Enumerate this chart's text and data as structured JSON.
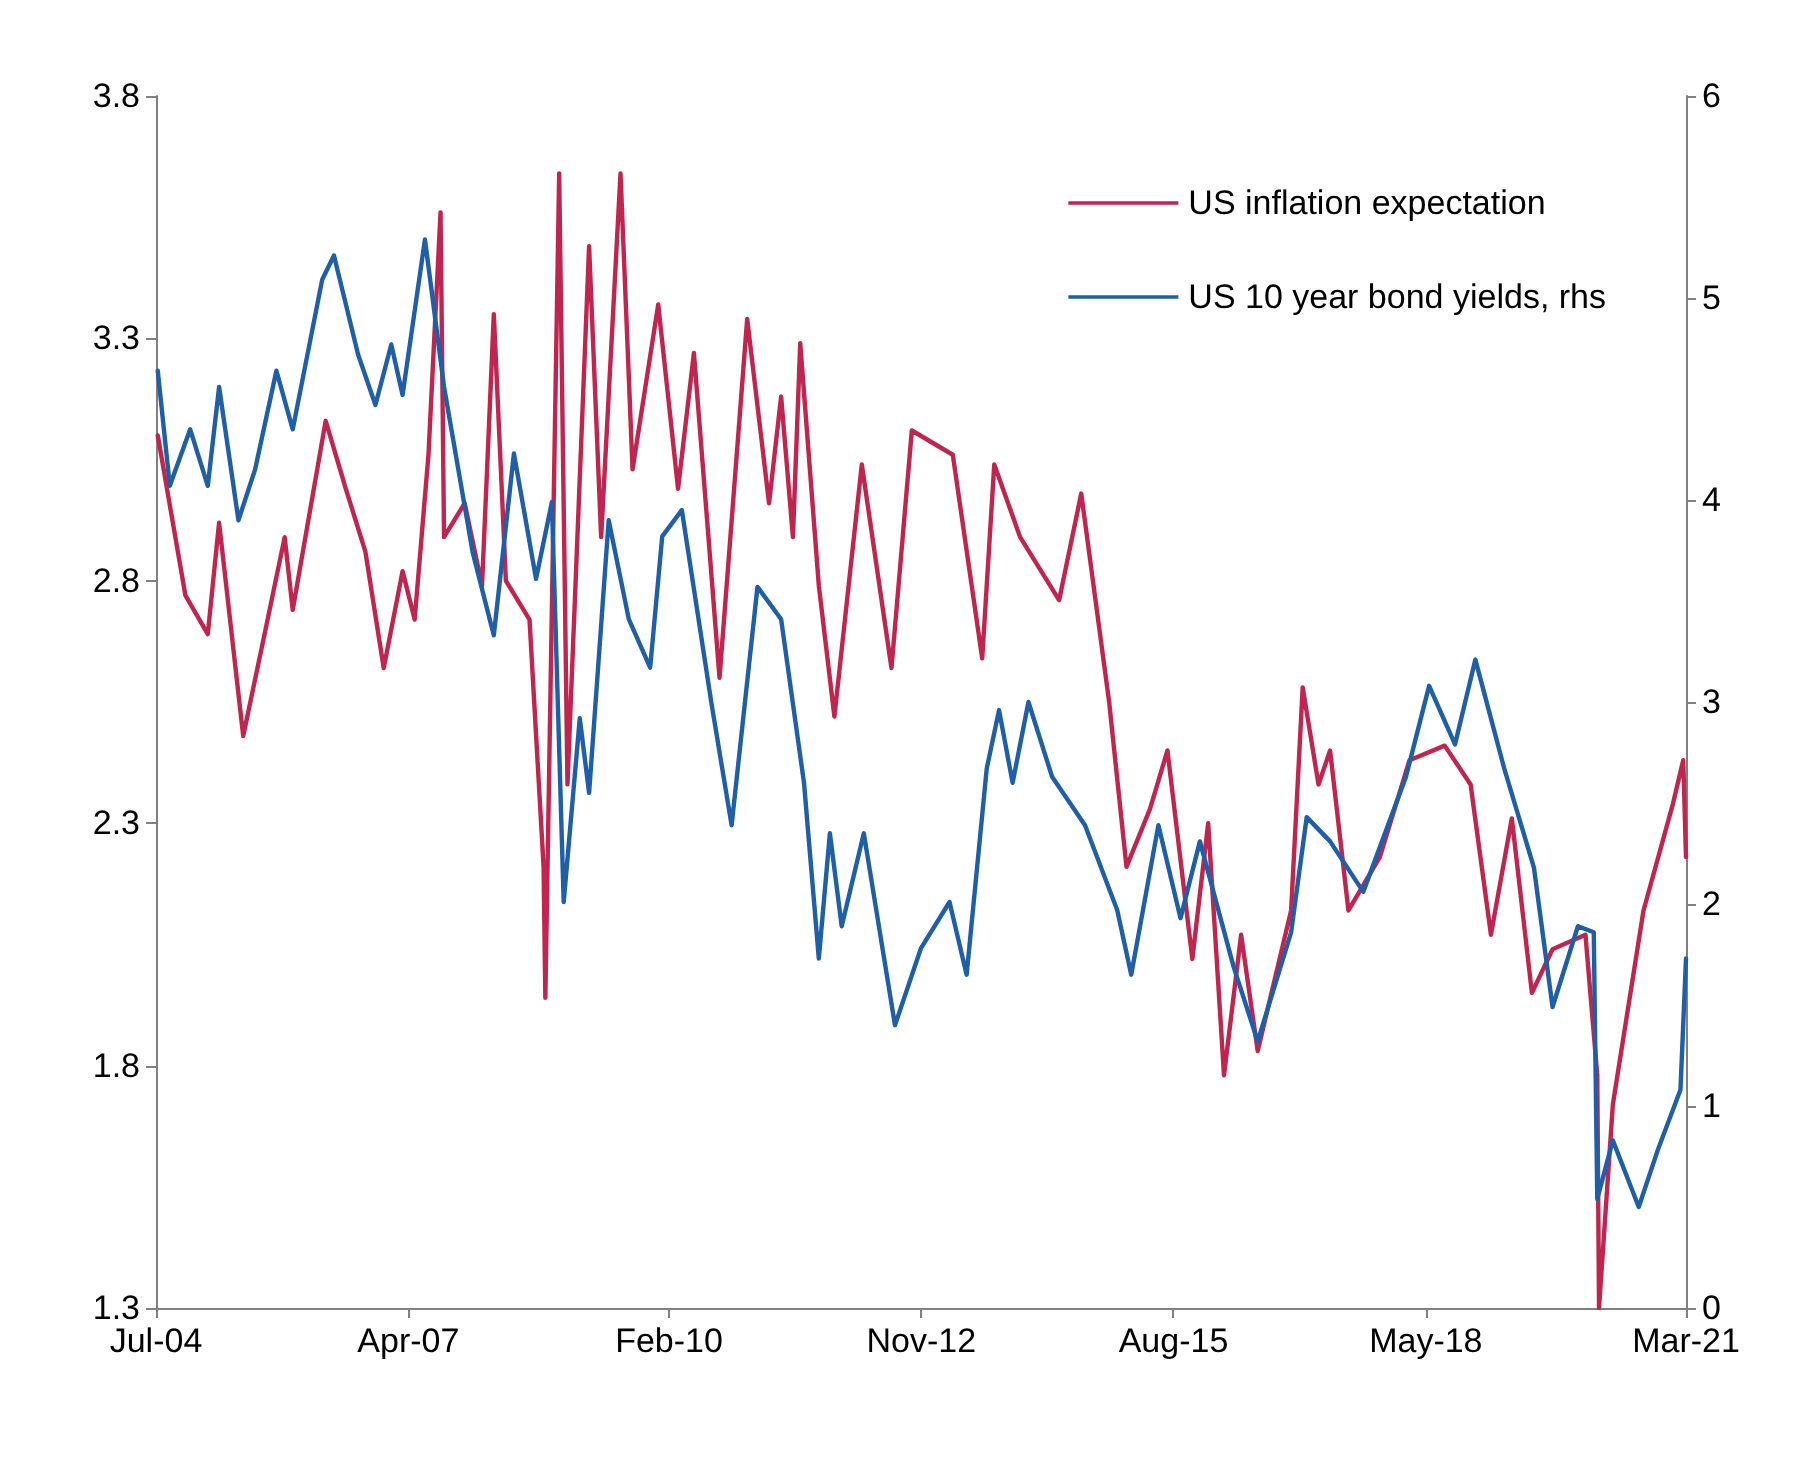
{
  "chart_data": {
    "type": "line",
    "xlim": [
      "2004-07-01",
      "2021-03-01"
    ],
    "xticks": [
      {
        "value": "2004-07-01",
        "label": "Jul-04"
      },
      {
        "value": "2007-04-01",
        "label": "Apr-07"
      },
      {
        "value": "2010-02-01",
        "label": "Feb-10"
      },
      {
        "value": "2012-11-01",
        "label": "Nov-12"
      },
      {
        "value": "2015-08-01",
        "label": "Aug-15"
      },
      {
        "value": "2018-05-01",
        "label": "May-18"
      },
      {
        "value": "2021-03-01",
        "label": "Mar-21"
      }
    ],
    "ylim": [
      1.3,
      3.8
    ],
    "yticks": [
      1.3,
      1.8,
      2.3,
      2.8,
      3.3,
      3.8
    ],
    "y2lim": [
      0,
      6
    ],
    "y2ticks": [
      0,
      1,
      2,
      3,
      4,
      5,
      6
    ],
    "grid": false,
    "legend": "top right",
    "marker": "none",
    "line_style": "solid",
    "series": [
      {
        "name": "US inflation expectation",
        "color": "#c0254f",
        "x": [
          "2004-07-08",
          "2004-10-26",
          "2005-01-23",
          "2005-03-09",
          "2005-06-13",
          "2005-09-06",
          "2005-11-25",
          "2005-12-27",
          "2006-05-07",
          "2006-07-26",
          "2006-10-12",
          "2006-12-24",
          "2007-03-09",
          "2007-04-26",
          "2007-06-20",
          "2007-08-07",
          "2007-08-21",
          "2007-11-11",
          "2008-01-19",
          "2008-03-06",
          "2008-04-23",
          "2008-07-26",
          "2008-09-20",
          "2008-09-27",
          "2008-11-21",
          "2008-12-24",
          "2009-03-20",
          "2009-05-07",
          "2009-07-23",
          "2009-09-09",
          "2009-12-20",
          "2010-03-09",
          "2010-05-11",
          "2010-08-21",
          "2010-12-09",
          "2011-03-06",
          "2011-04-23",
          "2011-06-09",
          "2011-07-08",
          "2011-09-20",
          "2011-11-21",
          "2012-03-09",
          "2012-07-05",
          "2012-09-24",
          "2013-03-06",
          "2013-07-01",
          "2013-08-18",
          "2013-11-29",
          "2014-05-03",
          "2014-07-30",
          "2014-11-18",
          "2015-01-26",
          "2015-04-30",
          "2015-07-08",
          "2015-10-15",
          "2015-12-17",
          "2016-02-18",
          "2016-04-26",
          "2016-07-01",
          "2016-11-11",
          "2016-12-27",
          "2017-02-28",
          "2017-04-15",
          "2017-06-27",
          "2017-10-30",
          "2018-02-25",
          "2018-07-15",
          "2018-10-26",
          "2019-01-15",
          "2019-04-08",
          "2019-06-27",
          "2019-09-17",
          "2020-01-26",
          "2020-03-13",
          "2020-03-20",
          "2020-05-14",
          "2020-09-13",
          "2021-01-08",
          "2021-02-18",
          "2021-03-01"
        ],
        "values": [
          3.1,
          2.77,
          2.69,
          2.92,
          2.48,
          2.69,
          2.89,
          2.74,
          3.13,
          2.99,
          2.86,
          2.62,
          2.82,
          2.72,
          3.06,
          3.56,
          2.89,
          2.96,
          2.79,
          3.35,
          2.8,
          2.72,
          2.21,
          1.94,
          3.64,
          2.38,
          3.49,
          2.89,
          3.64,
          3.03,
          3.37,
          2.99,
          3.27,
          2.6,
          3.34,
          2.96,
          3.18,
          2.89,
          3.29,
          2.79,
          2.52,
          3.04,
          2.62,
          3.11,
          3.06,
          2.64,
          3.04,
          2.89,
          2.76,
          2.98,
          2.55,
          2.21,
          2.33,
          2.45,
          2.02,
          2.3,
          1.78,
          2.07,
          1.83,
          2.12,
          2.58,
          2.38,
          2.45,
          2.12,
          2.23,
          2.43,
          2.46,
          2.38,
          2.07,
          2.31,
          1.95,
          2.04,
          2.07,
          1.78,
          1.3,
          1.72,
          2.12,
          2.34,
          2.43,
          2.23
        ]
      },
      {
        "name": "US 10 year bond yields, rhs",
        "color": "#1f5fa8",
        "axis": "y2",
        "x": [
          "2004-07-08",
          "2004-08-25",
          "2004-11-14",
          "2005-01-23",
          "2005-03-09",
          "2005-05-25",
          "2005-07-30",
          "2005-10-23",
          "2005-12-27",
          "2006-04-23",
          "2006-06-09",
          "2006-09-13",
          "2006-11-21",
          "2007-01-23",
          "2007-03-09",
          "2007-06-06",
          "2007-08-21",
          "2007-12-13",
          "2008-03-06",
          "2008-05-25",
          "2008-08-21",
          "2008-10-23",
          "2008-12-09",
          "2009-02-11",
          "2009-03-20",
          "2009-06-06",
          "2009-08-25",
          "2009-11-18",
          "2010-01-05",
          "2010-03-24",
          "2010-07-19",
          "2010-10-08",
          "2011-01-19",
          "2011-04-23",
          "2011-07-23",
          "2011-09-20",
          "2011-11-03",
          "2011-12-20",
          "2012-03-17",
          "2012-07-19",
          "2012-10-30",
          "2013-02-21",
          "2013-04-30",
          "2013-07-19",
          "2013-09-06",
          "2013-10-30",
          "2014-01-01",
          "2014-04-05",
          "2014-08-14",
          "2014-12-20",
          "2015-02-14",
          "2015-06-02",
          "2015-08-29",
          "2015-11-14",
          "2016-03-27",
          "2016-07-01",
          "2016-11-11",
          "2017-01-12",
          "2017-04-15",
          "2017-08-25",
          "2018-02-11",
          "2018-05-14",
          "2018-08-25",
          "2018-11-14",
          "2019-03-09",
          "2019-07-05",
          "2019-09-17",
          "2019-12-27",
          "2020-02-28",
          "2020-03-13",
          "2020-05-14",
          "2020-08-25",
          "2020-11-11",
          "2021-02-07",
          "2021-03-01"
        ],
        "values": [
          4.64,
          4.07,
          4.35,
          4.07,
          4.56,
          3.9,
          4.15,
          4.64,
          4.35,
          5.09,
          5.21,
          4.72,
          4.47,
          4.77,
          4.52,
          5.29,
          4.56,
          3.74,
          3.33,
          4.23,
          3.61,
          3.99,
          2.01,
          2.92,
          2.55,
          3.9,
          3.41,
          3.17,
          3.82,
          3.95,
          3.0,
          2.39,
          3.57,
          3.41,
          2.6,
          1.73,
          2.35,
          1.89,
          2.35,
          1.4,
          1.78,
          2.01,
          1.65,
          2.67,
          2.96,
          2.6,
          3.0,
          2.63,
          2.39,
          1.97,
          1.65,
          2.39,
          1.93,
          2.31,
          1.69,
          1.32,
          1.86,
          2.43,
          2.31,
          2.06,
          2.63,
          3.08,
          2.79,
          3.21,
          2.67,
          2.18,
          1.49,
          1.89,
          1.86,
          0.54,
          0.83,
          0.5,
          0.79,
          1.08,
          1.73
        ]
      }
    ]
  }
}
